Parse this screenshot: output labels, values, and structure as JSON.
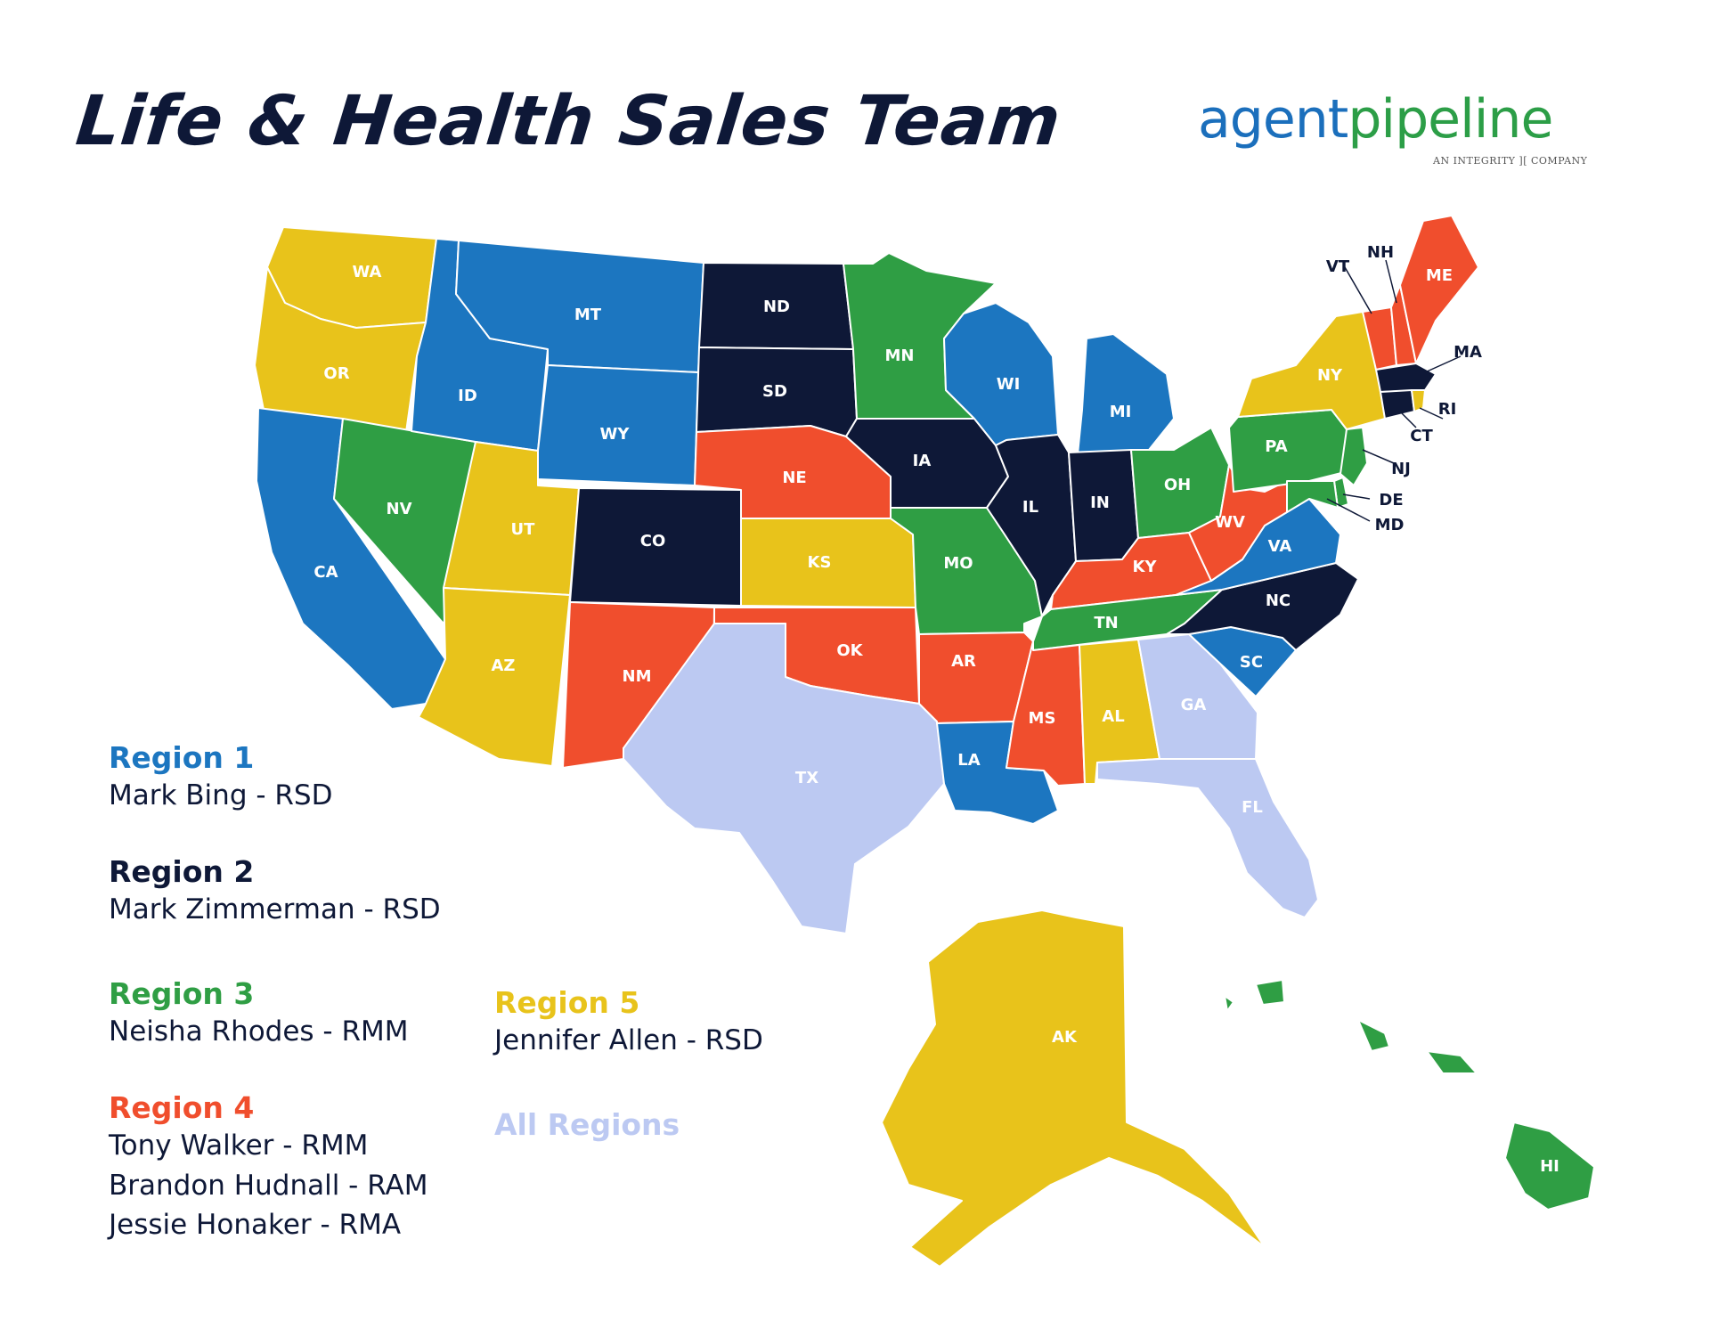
{
  "title": "Life & Health Sales Team",
  "logo": {
    "word_agent": "agent",
    "word_pipeline": "pipeline",
    "tagline": "AN INTEGRITY ][ COMPANY"
  },
  "colors": {
    "region_1": "#1c76c0",
    "region_2": "#0e1837",
    "region_3": "#2f9e44",
    "region_4": "#f04e2d",
    "region_5": "#e8c31b",
    "all_regions": "#bcc9f2"
  },
  "regions": [
    {
      "title": "Region 1",
      "color": "#1c76c0",
      "people": [
        "Mark Bing - RSD"
      ]
    },
    {
      "title": "Region 2",
      "color": "#0e1837",
      "people": [
        "Mark Zimmerman - RSD"
      ]
    },
    {
      "title": "Region 3",
      "color": "#2f9e44",
      "people": [
        "Neisha Rhodes - RMM"
      ]
    },
    {
      "title": "Region 4",
      "color": "#f04e2d",
      "people": [
        "Tony Walker - RMM",
        "Brandon Hudnall - RAM",
        "Jessie Honaker - RMA"
      ]
    },
    {
      "title": "Region 5",
      "color": "#e8c31b",
      "people": [
        "Jennifer Allen - RSD"
      ]
    },
    {
      "title": "All Regions",
      "color": "#bcc9f2",
      "people": []
    }
  ],
  "states": {
    "WA": "Region 5",
    "OR": "Region 5",
    "CA": "Region 1",
    "NV": "Region 3",
    "ID": "Region 1",
    "MT": "Region 1",
    "WY": "Region 1",
    "UT": "Region 5",
    "AZ": "Region 5",
    "CO": "Region 2",
    "NM": "Region 4",
    "ND": "Region 2",
    "SD": "Region 2",
    "NE": "Region 4",
    "KS": "Region 5",
    "OK": "Region 4",
    "TX": "All Regions",
    "MN": "Region 3",
    "IA": "Region 2",
    "MO": "Region 3",
    "AR": "Region 4",
    "LA": "Region 1",
    "WI": "Region 1",
    "IL": "Region 2",
    "MI": "Region 1",
    "IN": "Region 2",
    "OH": "Region 3",
    "KY": "Region 4",
    "TN": "Region 3",
    "MS": "Region 4",
    "AL": "Region 5",
    "GA": "All Regions",
    "FL": "All Regions",
    "SC": "Region 1",
    "NC": "Region 2",
    "VA": "Region 1",
    "WV": "Region 4",
    "PA": "Region 3",
    "NY": "Region 5",
    "VT": "Region 4",
    "NH": "Region 4",
    "ME": "Region 4",
    "MA": "Region 2",
    "CT": "Region 2",
    "RI": "Region 5",
    "NJ": "Region 3",
    "DE": "Region 3",
    "MD": "Region 3",
    "AK": "Region 5",
    "HI": "Region 3"
  }
}
